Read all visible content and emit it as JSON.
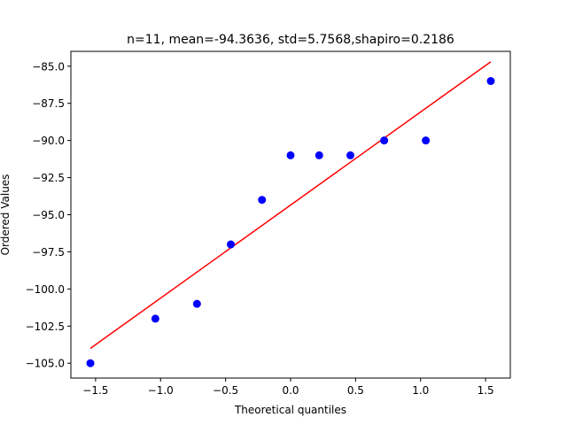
{
  "chart_data": {
    "type": "scatter",
    "title": "n=11, mean=-94.3636, std=5.7568,shapiro=0.2186",
    "xlabel": "Theoretical quantiles",
    "ylabel": "Ordered Values",
    "xlim": [
      -1.69,
      1.69
    ],
    "ylim": [
      -106.0,
      -84.0
    ],
    "xticks": [
      -1.5,
      -1.0,
      -0.5,
      0.0,
      0.5,
      1.0,
      1.5
    ],
    "xtick_labels": [
      "−1.5",
      "−1.0",
      "−0.5",
      "0.0",
      "0.5",
      "1.0",
      "1.5"
    ],
    "yticks": [
      -85.0,
      -87.5,
      -90.0,
      -92.5,
      -95.0,
      -97.5,
      -100.0,
      -102.5,
      -105.0
    ],
    "ytick_labels": [
      "−85.0",
      "−87.5",
      "−90.0",
      "−92.5",
      "−95.0",
      "−97.5",
      "−100.0",
      "−102.5",
      "−105.0"
    ],
    "grid": false,
    "points": {
      "color": "#0000ff",
      "x": [
        -1.54,
        -1.04,
        -0.72,
        -0.46,
        -0.22,
        0.0,
        0.22,
        0.46,
        0.72,
        1.04,
        1.54
      ],
      "y": [
        -105,
        -102,
        -101,
        -97,
        -94,
        -91,
        -91,
        -91,
        -90,
        -90,
        -86
      ]
    },
    "fit_line": {
      "color": "#ff0000",
      "x": [
        -1.54,
        1.54
      ],
      "y": [
        -104.0,
        -84.7
      ]
    }
  }
}
